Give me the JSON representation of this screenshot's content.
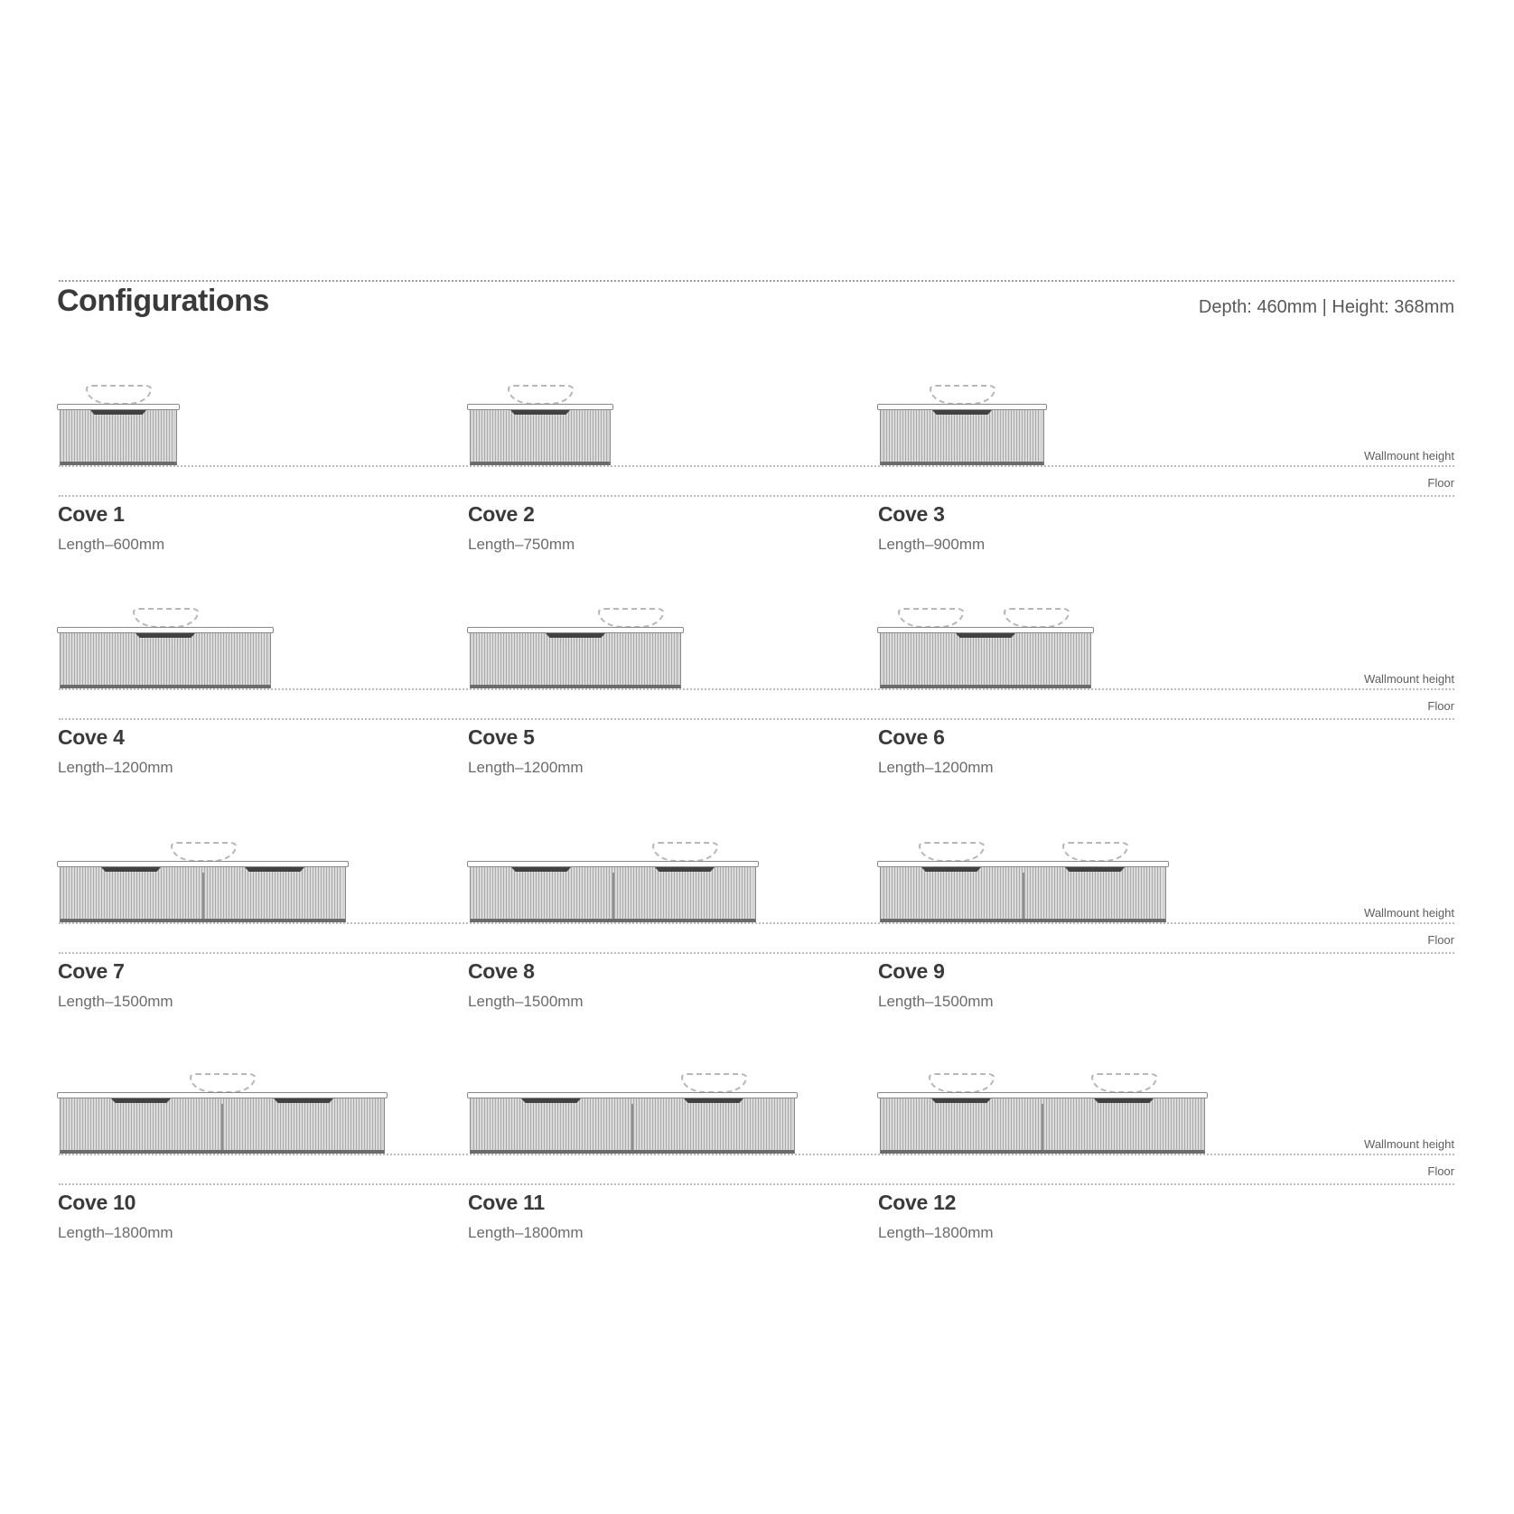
{
  "header": {
    "title": "Configurations",
    "dimensions": "Depth: 460mm | Height: 368mm"
  },
  "row_labels": {
    "wallmount": "Wallmount height",
    "floor": "Floor"
  },
  "colors": {
    "text_primary": "#3a3a3a",
    "text_secondary": "#6b6b6b",
    "cabinet_fill": "#dbdbdb",
    "cabinet_line": "#8a8a8a",
    "handle": "#414141",
    "dotted_line": "#bcbcbc"
  },
  "configs": [
    {
      "name": "Cove 1",
      "length_label": "Length–600mm",
      "length_mm": 600,
      "drawers": 1,
      "basins": [
        0.5
      ]
    },
    {
      "name": "Cove 2",
      "length_label": "Length–750mm",
      "length_mm": 750,
      "drawers": 1,
      "basins": [
        0.5
      ]
    },
    {
      "name": "Cove 3",
      "length_label": "Length–900mm",
      "length_mm": 900,
      "drawers": 1,
      "basins": [
        0.5
      ]
    },
    {
      "name": "Cove 4",
      "length_label": "Length–1200mm",
      "length_mm": 1200,
      "drawers": 1,
      "basins": [
        0.5
      ]
    },
    {
      "name": "Cove 5",
      "length_label": "Length–1200mm",
      "length_mm": 1200,
      "drawers": 1,
      "basins": [
        0.76
      ]
    },
    {
      "name": "Cove 6",
      "length_label": "Length–1200mm",
      "length_mm": 1200,
      "drawers": 1,
      "basins": [
        0.24,
        0.74
      ]
    },
    {
      "name": "Cove 7",
      "length_label": "Length–1500mm",
      "length_mm": 1500,
      "drawers": 2,
      "basins": [
        0.5
      ]
    },
    {
      "name": "Cove 8",
      "length_label": "Length–1500mm",
      "length_mm": 1500,
      "drawers": 2,
      "basins": [
        0.75
      ]
    },
    {
      "name": "Cove 9",
      "length_label": "Length–1500mm",
      "length_mm": 1500,
      "drawers": 2,
      "basins": [
        0.25,
        0.75
      ]
    },
    {
      "name": "Cove 10",
      "length_label": "Length–1800mm",
      "length_mm": 1800,
      "drawers": 2,
      "basins": [
        0.5
      ]
    },
    {
      "name": "Cove 11",
      "length_label": "Length–1800mm",
      "length_mm": 1800,
      "drawers": 2,
      "basins": [
        0.75
      ]
    },
    {
      "name": "Cove 12",
      "length_label": "Length–1800mm",
      "length_mm": 1800,
      "drawers": 2,
      "basins": [
        0.25,
        0.75
      ]
    }
  ]
}
